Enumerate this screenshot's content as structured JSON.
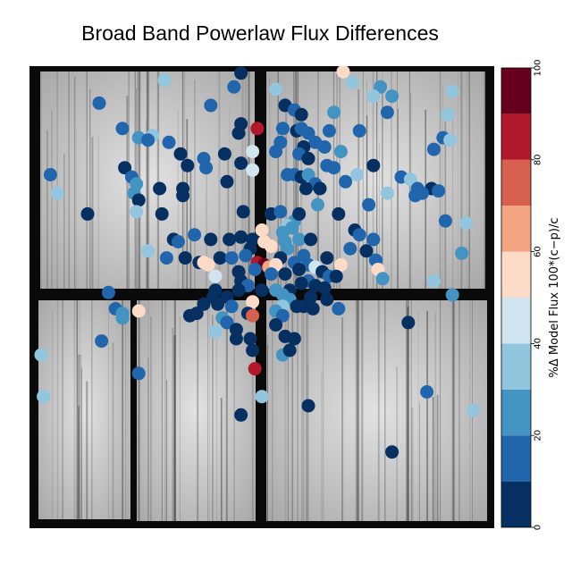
{
  "chart_data": {
    "type": "scatter",
    "title": "Broad Band Powerlaw Flux Differences",
    "background": "grayscale detector image with dark chip gaps",
    "colorbar": {
      "label": "%Δ Model Flux 100*(c−p)/c",
      "range": [
        0,
        100
      ],
      "ticks": [
        "0",
        "20",
        "40",
        "60",
        "80",
        "100"
      ],
      "levels": [
        {
          "range": [
            0,
            10
          ],
          "color": "#053061"
        },
        {
          "range": [
            10,
            20
          ],
          "color": "#2166ac"
        },
        {
          "range": [
            20,
            30
          ],
          "color": "#4393c3"
        },
        {
          "range": [
            30,
            40
          ],
          "color": "#92c5de"
        },
        {
          "range": [
            40,
            50
          ],
          "color": "#d1e5f0"
        },
        {
          "range": [
            50,
            60
          ],
          "color": "#fddbc7"
        },
        {
          "range": [
            60,
            70
          ],
          "color": "#f4a582"
        },
        {
          "range": [
            70,
            80
          ],
          "color": "#d6604d"
        },
        {
          "range": [
            80,
            90
          ],
          "color": "#b2182b"
        },
        {
          "range": [
            90,
            100
          ],
          "color": "#67001f"
        }
      ]
    },
    "points": [
      {
        "x": 0.455,
        "y": 0.985,
        "v": 8
      },
      {
        "x": 0.675,
        "y": 0.988,
        "v": 55
      },
      {
        "x": 0.29,
        "y": 0.97,
        "v": 32
      },
      {
        "x": 0.695,
        "y": 0.965,
        "v": 38
      },
      {
        "x": 0.44,
        "y": 0.955,
        "v": 15
      },
      {
        "x": 0.755,
        "y": 0.955,
        "v": 28
      },
      {
        "x": 0.74,
        "y": 0.935,
        "v": 30
      },
      {
        "x": 0.78,
        "y": 0.935,
        "v": 25
      },
      {
        "x": 0.53,
        "y": 0.95,
        "v": 30
      },
      {
        "x": 0.91,
        "y": 0.945,
        "v": 30
      },
      {
        "x": 0.15,
        "y": 0.92,
        "v": 15
      },
      {
        "x": 0.39,
        "y": 0.915,
        "v": 10
      },
      {
        "x": 0.55,
        "y": 0.915,
        "v": 8
      },
      {
        "x": 0.57,
        "y": 0.905,
        "v": 12
      },
      {
        "x": 0.655,
        "y": 0.9,
        "v": 25
      },
      {
        "x": 0.585,
        "y": 0.895,
        "v": 8
      },
      {
        "x": 0.77,
        "y": 0.9,
        "v": 15
      },
      {
        "x": 0.9,
        "y": 0.895,
        "v": 30
      },
      {
        "x": 0.455,
        "y": 0.875,
        "v": 8
      },
      {
        "x": 0.49,
        "y": 0.865,
        "v": 85
      },
      {
        "x": 0.2,
        "y": 0.865,
        "v": 15
      },
      {
        "x": 0.45,
        "y": 0.855,
        "v": 8
      },
      {
        "x": 0.545,
        "y": 0.865,
        "v": 15
      },
      {
        "x": 0.575,
        "y": 0.86,
        "v": 8
      },
      {
        "x": 0.585,
        "y": 0.865,
        "v": 15
      },
      {
        "x": 0.6,
        "y": 0.855,
        "v": 15
      },
      {
        "x": 0.645,
        "y": 0.86,
        "v": 15
      },
      {
        "x": 0.71,
        "y": 0.86,
        "v": 15
      },
      {
        "x": 0.265,
        "y": 0.85,
        "v": 30
      },
      {
        "x": 0.235,
        "y": 0.845,
        "v": 25
      },
      {
        "x": 0.255,
        "y": 0.84,
        "v": 15
      },
      {
        "x": 0.89,
        "y": 0.845,
        "v": 15
      },
      {
        "x": 0.905,
        "y": 0.84,
        "v": 30
      },
      {
        "x": 0.3,
        "y": 0.835,
        "v": 15
      },
      {
        "x": 0.54,
        "y": 0.835,
        "v": 15
      },
      {
        "x": 0.615,
        "y": 0.835,
        "v": 15
      },
      {
        "x": 0.59,
        "y": 0.825,
        "v": 8
      },
      {
        "x": 0.635,
        "y": 0.825,
        "v": 15
      },
      {
        "x": 0.87,
        "y": 0.82,
        "v": 15
      },
      {
        "x": 0.48,
        "y": 0.815,
        "v": 45
      },
      {
        "x": 0.325,
        "y": 0.81,
        "v": 8
      },
      {
        "x": 0.58,
        "y": 0.81,
        "v": 15
      },
      {
        "x": 0.53,
        "y": 0.815,
        "v": 15
      },
      {
        "x": 0.42,
        "y": 0.81,
        "v": 8
      },
      {
        "x": 0.67,
        "y": 0.815,
        "v": 25
      },
      {
        "x": 0.375,
        "y": 0.8,
        "v": 15
      },
      {
        "x": 0.6,
        "y": 0.8,
        "v": 8
      },
      {
        "x": 0.455,
        "y": 0.79,
        "v": 8
      },
      {
        "x": 0.34,
        "y": 0.785,
        "v": 8
      },
      {
        "x": 0.38,
        "y": 0.78,
        "v": 15
      },
      {
        "x": 0.64,
        "y": 0.785,
        "v": 15
      },
      {
        "x": 0.655,
        "y": 0.78,
        "v": 15
      },
      {
        "x": 0.205,
        "y": 0.78,
        "v": 8
      },
      {
        "x": 0.48,
        "y": 0.775,
        "v": 45
      },
      {
        "x": 0.74,
        "y": 0.785,
        "v": 8
      },
      {
        "x": 0.57,
        "y": 0.765,
        "v": 15
      },
      {
        "x": 0.555,
        "y": 0.765,
        "v": 15
      },
      {
        "x": 0.705,
        "y": 0.765,
        "v": 30
      },
      {
        "x": 0.045,
        "y": 0.765,
        "v": 15
      },
      {
        "x": 0.585,
        "y": 0.76,
        "v": 8
      },
      {
        "x": 0.6,
        "y": 0.765,
        "v": 25
      },
      {
        "x": 0.22,
        "y": 0.76,
        "v": 15
      },
      {
        "x": 0.8,
        "y": 0.76,
        "v": 15
      },
      {
        "x": 0.82,
        "y": 0.755,
        "v": 30
      },
      {
        "x": 0.23,
        "y": 0.745,
        "v": 25
      },
      {
        "x": 0.425,
        "y": 0.75,
        "v": 8
      },
      {
        "x": 0.615,
        "y": 0.745,
        "v": 15
      },
      {
        "x": 0.625,
        "y": 0.735,
        "v": 8
      },
      {
        "x": 0.68,
        "y": 0.75,
        "v": 15
      },
      {
        "x": 0.835,
        "y": 0.735,
        "v": 15
      },
      {
        "x": 0.28,
        "y": 0.735,
        "v": 8
      },
      {
        "x": 0.33,
        "y": 0.735,
        "v": 8
      },
      {
        "x": 0.595,
        "y": 0.735,
        "v": 8
      },
      {
        "x": 0.06,
        "y": 0.725,
        "v": 30
      },
      {
        "x": 0.225,
        "y": 0.725,
        "v": 25
      },
      {
        "x": 0.33,
        "y": 0.72,
        "v": 8
      },
      {
        "x": 0.865,
        "y": 0.735,
        "v": 8
      },
      {
        "x": 0.88,
        "y": 0.73,
        "v": 15
      },
      {
        "x": 0.77,
        "y": 0.725,
        "v": 30
      },
      {
        "x": 0.235,
        "y": 0.71,
        "v": 8
      },
      {
        "x": 0.83,
        "y": 0.72,
        "v": 15
      },
      {
        "x": 0.845,
        "y": 0.725,
        "v": 15
      },
      {
        "x": 0.62,
        "y": 0.7,
        "v": 25
      },
      {
        "x": 0.73,
        "y": 0.7,
        "v": 15
      },
      {
        "x": 0.5,
        "y": 0.645,
        "v": 55
      },
      {
        "x": 0.125,
        "y": 0.68,
        "v": 8
      },
      {
        "x": 0.23,
        "y": 0.685,
        "v": 30
      },
      {
        "x": 0.285,
        "y": 0.68,
        "v": 8
      },
      {
        "x": 0.46,
        "y": 0.685,
        "v": 8
      },
      {
        "x": 0.52,
        "y": 0.68,
        "v": 8
      },
      {
        "x": 0.54,
        "y": 0.685,
        "v": 15
      },
      {
        "x": 0.57,
        "y": 0.665,
        "v": 25
      },
      {
        "x": 0.58,
        "y": 0.68,
        "v": 8
      },
      {
        "x": 0.665,
        "y": 0.68,
        "v": 8
      },
      {
        "x": 0.555,
        "y": 0.655,
        "v": 30
      },
      {
        "x": 0.895,
        "y": 0.665,
        "v": 15
      },
      {
        "x": 0.94,
        "y": 0.66,
        "v": 30
      },
      {
        "x": 0.565,
        "y": 0.65,
        "v": 25
      },
      {
        "x": 0.545,
        "y": 0.64,
        "v": 25
      },
      {
        "x": 0.7,
        "y": 0.645,
        "v": 8
      },
      {
        "x": 0.71,
        "y": 0.635,
        "v": 15
      },
      {
        "x": 0.355,
        "y": 0.635,
        "v": 15
      },
      {
        "x": 0.455,
        "y": 0.63,
        "v": 8
      },
      {
        "x": 0.58,
        "y": 0.625,
        "v": 25
      },
      {
        "x": 0.31,
        "y": 0.625,
        "v": 8
      },
      {
        "x": 0.32,
        "y": 0.62,
        "v": 15
      },
      {
        "x": 0.39,
        "y": 0.625,
        "v": 8
      },
      {
        "x": 0.43,
        "y": 0.625,
        "v": 8
      },
      {
        "x": 0.48,
        "y": 0.625,
        "v": 8
      },
      {
        "x": 0.74,
        "y": 0.625,
        "v": 15
      },
      {
        "x": 0.505,
        "y": 0.62,
        "v": 55
      },
      {
        "x": 0.55,
        "y": 0.62,
        "v": 25
      },
      {
        "x": 0.605,
        "y": 0.625,
        "v": 8
      },
      {
        "x": 0.255,
        "y": 0.6,
        "v": 30
      },
      {
        "x": 0.475,
        "y": 0.605,
        "v": 8
      },
      {
        "x": 0.52,
        "y": 0.61,
        "v": 55
      },
      {
        "x": 0.555,
        "y": 0.605,
        "v": 25
      },
      {
        "x": 0.69,
        "y": 0.605,
        "v": 15
      },
      {
        "x": 0.725,
        "y": 0.6,
        "v": 8
      },
      {
        "x": 0.93,
        "y": 0.595,
        "v": 25
      },
      {
        "x": 0.335,
        "y": 0.585,
        "v": 8
      },
      {
        "x": 0.295,
        "y": 0.585,
        "v": 15
      },
      {
        "x": 0.41,
        "y": 0.585,
        "v": 8
      },
      {
        "x": 0.435,
        "y": 0.585,
        "v": 15
      },
      {
        "x": 0.465,
        "y": 0.59,
        "v": 15
      },
      {
        "x": 0.54,
        "y": 0.585,
        "v": 8
      },
      {
        "x": 0.59,
        "y": 0.59,
        "v": 15
      },
      {
        "x": 0.64,
        "y": 0.585,
        "v": 8
      },
      {
        "x": 0.745,
        "y": 0.58,
        "v": 15
      },
      {
        "x": 0.365,
        "y": 0.575,
        "v": 8
      },
      {
        "x": 0.375,
        "y": 0.575,
        "v": 55
      },
      {
        "x": 0.385,
        "y": 0.57,
        "v": 55
      },
      {
        "x": 0.49,
        "y": 0.575,
        "v": 85
      },
      {
        "x": 0.505,
        "y": 0.57,
        "v": 95
      },
      {
        "x": 0.515,
        "y": 0.565,
        "v": 60
      },
      {
        "x": 0.53,
        "y": 0.57,
        "v": 55
      },
      {
        "x": 0.57,
        "y": 0.575,
        "v": 15
      },
      {
        "x": 0.6,
        "y": 0.57,
        "v": 15
      },
      {
        "x": 0.67,
        "y": 0.57,
        "v": 55
      },
      {
        "x": 0.485,
        "y": 0.56,
        "v": 15
      },
      {
        "x": 0.58,
        "y": 0.56,
        "v": 8
      },
      {
        "x": 0.615,
        "y": 0.565,
        "v": 45
      },
      {
        "x": 0.75,
        "y": 0.56,
        "v": 55
      },
      {
        "x": 0.45,
        "y": 0.555,
        "v": 8
      },
      {
        "x": 0.52,
        "y": 0.55,
        "v": 15
      },
      {
        "x": 0.55,
        "y": 0.55,
        "v": 8
      },
      {
        "x": 0.63,
        "y": 0.555,
        "v": 8
      },
      {
        "x": 0.645,
        "y": 0.545,
        "v": 15
      },
      {
        "x": 0.66,
        "y": 0.545,
        "v": 8
      },
      {
        "x": 0.76,
        "y": 0.54,
        "v": 25
      },
      {
        "x": 0.4,
        "y": 0.545,
        "v": 45
      },
      {
        "x": 0.455,
        "y": 0.535,
        "v": 8
      },
      {
        "x": 0.6,
        "y": 0.535,
        "v": 15
      },
      {
        "x": 0.87,
        "y": 0.535,
        "v": 30
      },
      {
        "x": 0.47,
        "y": 0.525,
        "v": 15
      },
      {
        "x": 0.585,
        "y": 0.53,
        "v": 8
      },
      {
        "x": 0.615,
        "y": 0.525,
        "v": 8
      },
      {
        "x": 0.4,
        "y": 0.515,
        "v": 8
      },
      {
        "x": 0.45,
        "y": 0.515,
        "v": 8
      },
      {
        "x": 0.5,
        "y": 0.515,
        "v": 8
      },
      {
        "x": 0.53,
        "y": 0.515,
        "v": 25
      },
      {
        "x": 0.56,
        "y": 0.515,
        "v": 8
      },
      {
        "x": 0.635,
        "y": 0.52,
        "v": 8
      },
      {
        "x": 0.17,
        "y": 0.51,
        "v": 15
      },
      {
        "x": 0.395,
        "y": 0.5,
        "v": 8
      },
      {
        "x": 0.425,
        "y": 0.5,
        "v": 8
      },
      {
        "x": 0.545,
        "y": 0.505,
        "v": 25
      },
      {
        "x": 0.56,
        "y": 0.495,
        "v": 25
      },
      {
        "x": 0.605,
        "y": 0.5,
        "v": 8
      },
      {
        "x": 0.64,
        "y": 0.495,
        "v": 8
      },
      {
        "x": 0.91,
        "y": 0.505,
        "v": 25
      },
      {
        "x": 0.48,
        "y": 0.49,
        "v": 55
      },
      {
        "x": 0.375,
        "y": 0.485,
        "v": 8
      },
      {
        "x": 0.405,
        "y": 0.485,
        "v": 8
      },
      {
        "x": 0.435,
        "y": 0.48,
        "v": 15
      },
      {
        "x": 0.545,
        "y": 0.48,
        "v": 30
      },
      {
        "x": 0.575,
        "y": 0.48,
        "v": 8
      },
      {
        "x": 0.59,
        "y": 0.48,
        "v": 8
      },
      {
        "x": 0.61,
        "y": 0.475,
        "v": 8
      },
      {
        "x": 0.665,
        "y": 0.475,
        "v": 15
      },
      {
        "x": 0.185,
        "y": 0.475,
        "v": 15
      },
      {
        "x": 0.2,
        "y": 0.465,
        "v": 25
      },
      {
        "x": 0.235,
        "y": 0.47,
        "v": 55
      },
      {
        "x": 0.47,
        "y": 0.465,
        "v": 8
      },
      {
        "x": 0.48,
        "y": 0.46,
        "v": 75
      },
      {
        "x": 0.53,
        "y": 0.47,
        "v": 25
      },
      {
        "x": 0.545,
        "y": 0.46,
        "v": 15
      },
      {
        "x": 0.2,
        "y": 0.455,
        "v": 25
      },
      {
        "x": 0.345,
        "y": 0.46,
        "v": 8
      },
      {
        "x": 0.36,
        "y": 0.465,
        "v": 8
      },
      {
        "x": 0.415,
        "y": 0.455,
        "v": 25
      },
      {
        "x": 0.425,
        "y": 0.445,
        "v": 15
      },
      {
        "x": 0.815,
        "y": 0.445,
        "v": 8
      },
      {
        "x": 0.445,
        "y": 0.43,
        "v": 8
      },
      {
        "x": 0.53,
        "y": 0.44,
        "v": 8
      },
      {
        "x": 0.4,
        "y": 0.425,
        "v": 30
      },
      {
        "x": 0.155,
        "y": 0.405,
        "v": 15
      },
      {
        "x": 0.445,
        "y": 0.41,
        "v": 8
      },
      {
        "x": 0.475,
        "y": 0.41,
        "v": 8
      },
      {
        "x": 0.55,
        "y": 0.415,
        "v": 8
      },
      {
        "x": 0.57,
        "y": 0.41,
        "v": 8
      },
      {
        "x": 0.48,
        "y": 0.385,
        "v": 8
      },
      {
        "x": 0.545,
        "y": 0.375,
        "v": 25
      },
      {
        "x": 0.56,
        "y": 0.385,
        "v": 8
      },
      {
        "x": 0.485,
        "y": 0.345,
        "v": 85
      },
      {
        "x": 0.025,
        "y": 0.375,
        "v": 30
      },
      {
        "x": 0.235,
        "y": 0.335,
        "v": 15
      },
      {
        "x": 0.855,
        "y": 0.295,
        "v": 15
      },
      {
        "x": 0.5,
        "y": 0.285,
        "v": 30
      },
      {
        "x": 0.03,
        "y": 0.285,
        "v": 30
      },
      {
        "x": 0.6,
        "y": 0.265,
        "v": 8
      },
      {
        "x": 0.955,
        "y": 0.255,
        "v": 30
      },
      {
        "x": 0.455,
        "y": 0.245,
        "v": 8
      },
      {
        "x": 0.78,
        "y": 0.165,
        "v": 8
      }
    ]
  }
}
